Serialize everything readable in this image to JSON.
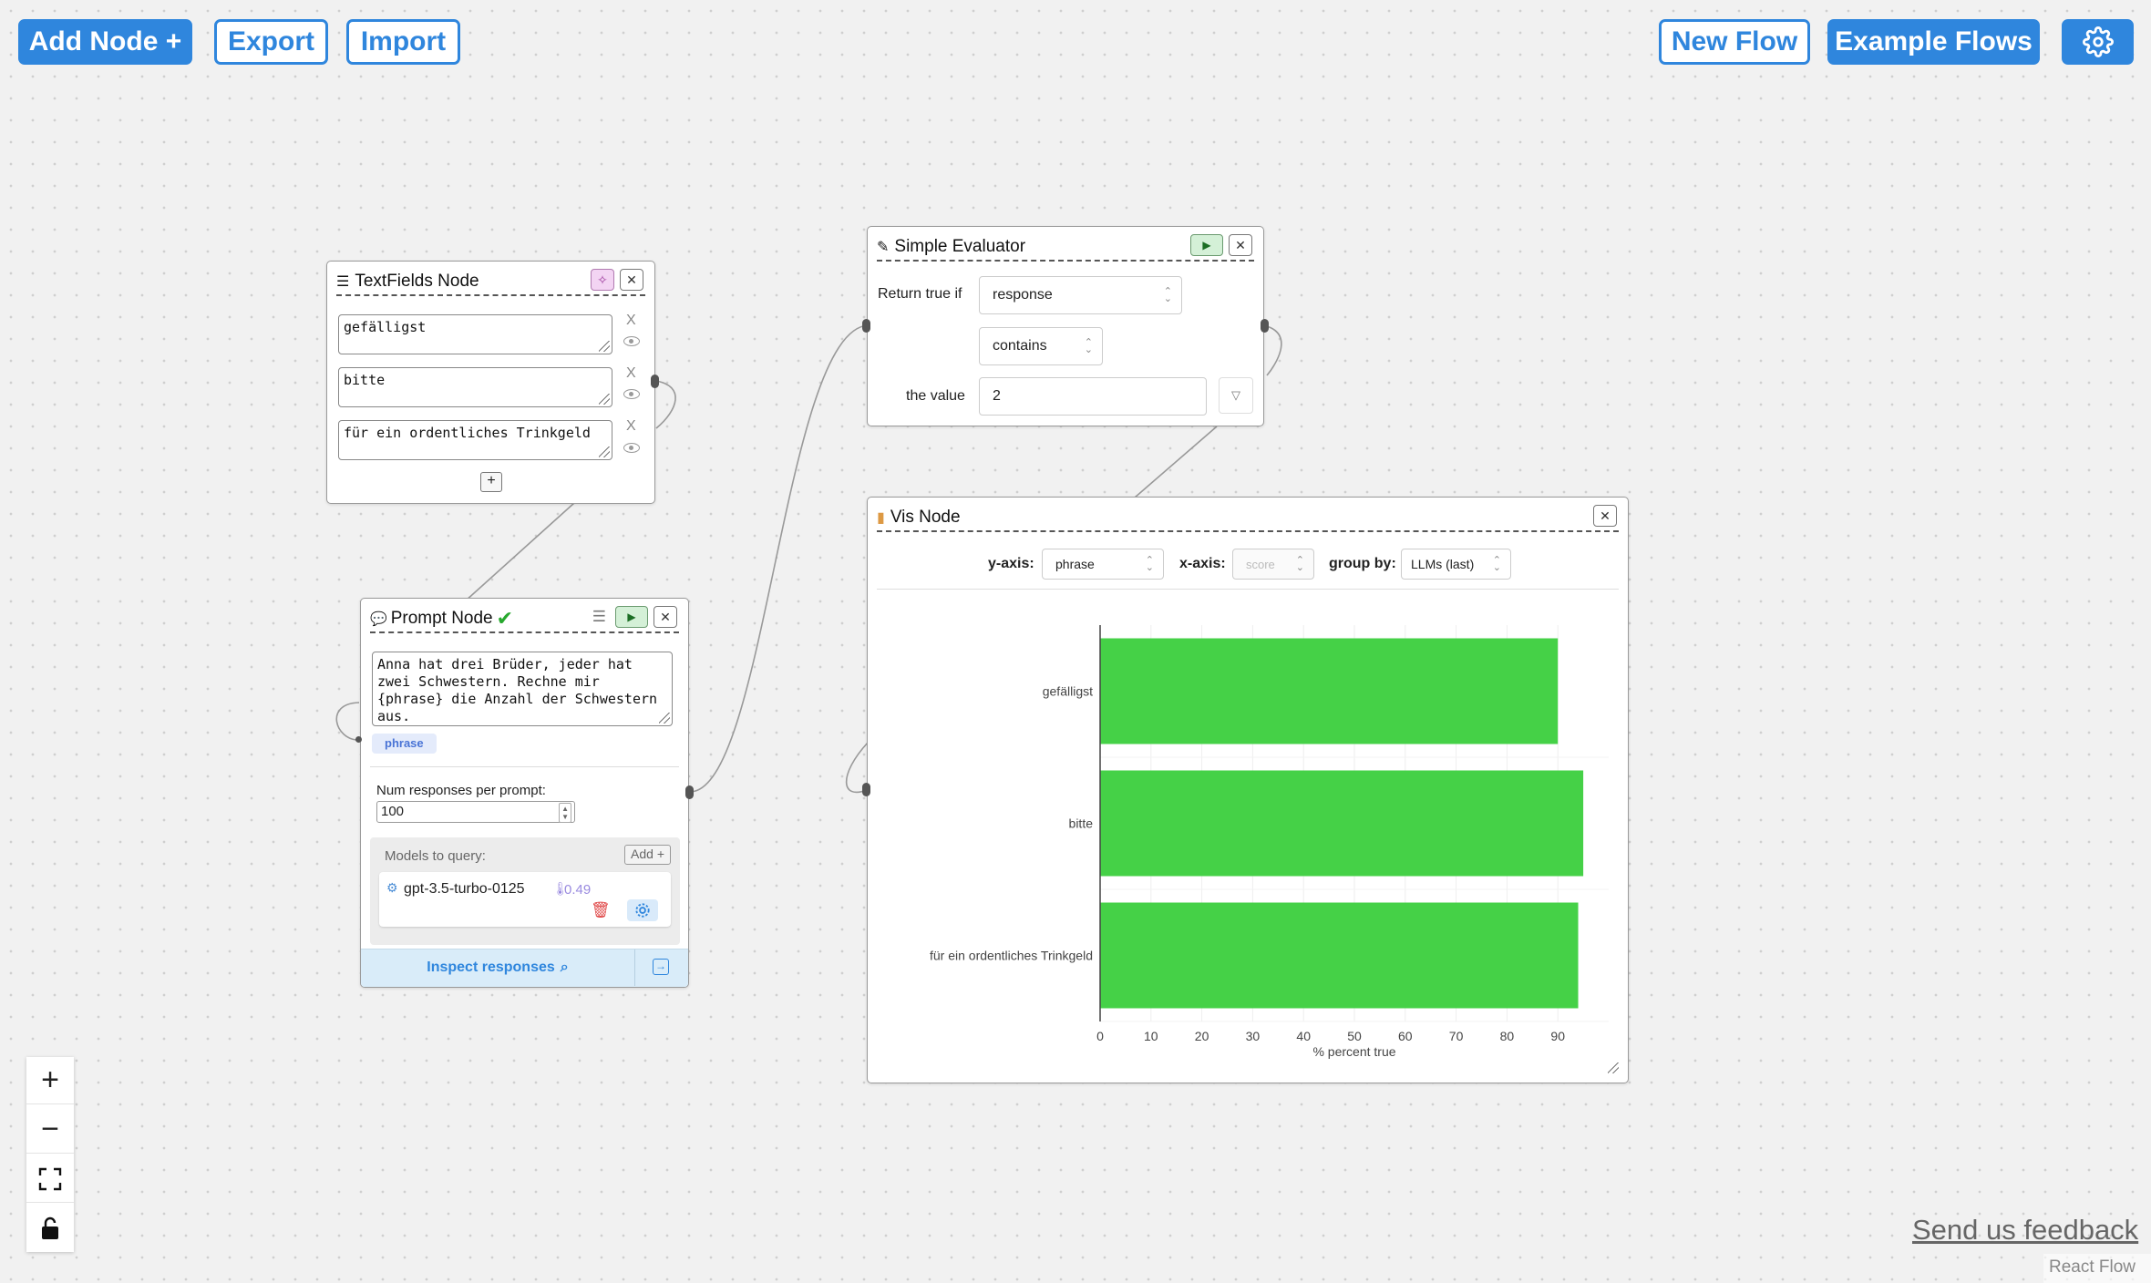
{
  "toolbar": {
    "add_node": "Add Node +",
    "export": "Export",
    "import": "Import",
    "new_flow": "New Flow",
    "example_flows": "Example Flows"
  },
  "textfields_node": {
    "title": "TextFields Node",
    "fields": [
      "gefälligst",
      "bitte",
      "für ein ordentliches Trinkgeld"
    ],
    "remove_label": "X",
    "add_label": "+"
  },
  "prompt_node": {
    "title": "Prompt Node",
    "check": "✔",
    "prompt": "Anna hat drei Brüder, jeder hat zwei Schwestern. Rechne mir {phrase} die Anzahl der Schwestern aus.",
    "variable_tag": "phrase",
    "num_responses_label": "Num responses per prompt:",
    "num_responses": "100",
    "models_label": "Models to query:",
    "add_model": "Add +",
    "model_name": "gpt-3.5-turbo-0125",
    "model_temp": "0.49",
    "inspect": "Inspect responses"
  },
  "evaluator_node": {
    "title": "Simple Evaluator",
    "return_true_if": "Return true if",
    "target": "response",
    "operator": "contains",
    "the_value": "the value",
    "value": "2"
  },
  "vis_node": {
    "title": "Vis Node",
    "y_axis_label": "y-axis:",
    "y_axis_value": "phrase",
    "x_axis_label": "x-axis:",
    "x_axis_value": "score",
    "group_by_label": "group by:",
    "group_by_value": "LLMs (last)"
  },
  "chart_data": {
    "type": "bar",
    "orientation": "horizontal",
    "categories": [
      "gefälligst",
      "bitte",
      "für ein ordentliches Trinkgeld"
    ],
    "values": [
      90,
      95,
      94
    ],
    "xlabel": "% percent true",
    "xticks": [
      0,
      10,
      20,
      30,
      40,
      50,
      60,
      70,
      80,
      90
    ],
    "xlim": [
      0,
      100
    ],
    "bar_color": "#45d147",
    "grid": true
  },
  "footer": {
    "feedback": "Send us feedback",
    "attribution": "React Flow"
  },
  "colors": {
    "accent": "#2f86dd",
    "bar": "#45d147",
    "run_button": "#d4f0d7"
  }
}
